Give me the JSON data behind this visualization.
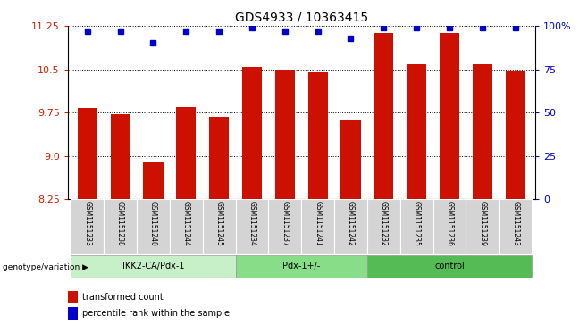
{
  "title": "GDS4933 / 10363415",
  "samples": [
    "GSM1151233",
    "GSM1151238",
    "GSM1151240",
    "GSM1151244",
    "GSM1151245",
    "GSM1151234",
    "GSM1151237",
    "GSM1151241",
    "GSM1151242",
    "GSM1151232",
    "GSM1151235",
    "GSM1151236",
    "GSM1151239",
    "GSM1151243"
  ],
  "bar_values": [
    9.83,
    9.72,
    8.88,
    9.85,
    9.68,
    10.54,
    10.49,
    10.44,
    9.62,
    11.12,
    10.58,
    11.13,
    10.58,
    10.47
  ],
  "dot_values": [
    97,
    97,
    90,
    97,
    97,
    99,
    97,
    97,
    93,
    99,
    99,
    99,
    99,
    99
  ],
  "groups": [
    {
      "label": "IKK2-CA/Pdx-1",
      "start": 0,
      "end": 5,
      "color": "#c8f0c8"
    },
    {
      "label": "Pdx-1+/-",
      "start": 5,
      "end": 9,
      "color": "#88dd88"
    },
    {
      "label": "control",
      "start": 9,
      "end": 14,
      "color": "#55bb55"
    }
  ],
  "ylim_left": [
    8.25,
    11.25
  ],
  "ylim_right": [
    0,
    100
  ],
  "yticks_left": [
    8.25,
    9.0,
    9.75,
    10.5,
    11.25
  ],
  "yticks_right": [
    0,
    25,
    50,
    75,
    100
  ],
  "bar_color": "#cc1100",
  "dot_color": "#0000cc",
  "grid_color": "#000000",
  "label_color_left": "#cc2200",
  "label_color_right": "#0000cc",
  "genotype_label": "genotype/variation",
  "legend_bar": "transformed count",
  "legend_dot": "percentile rank within the sample"
}
